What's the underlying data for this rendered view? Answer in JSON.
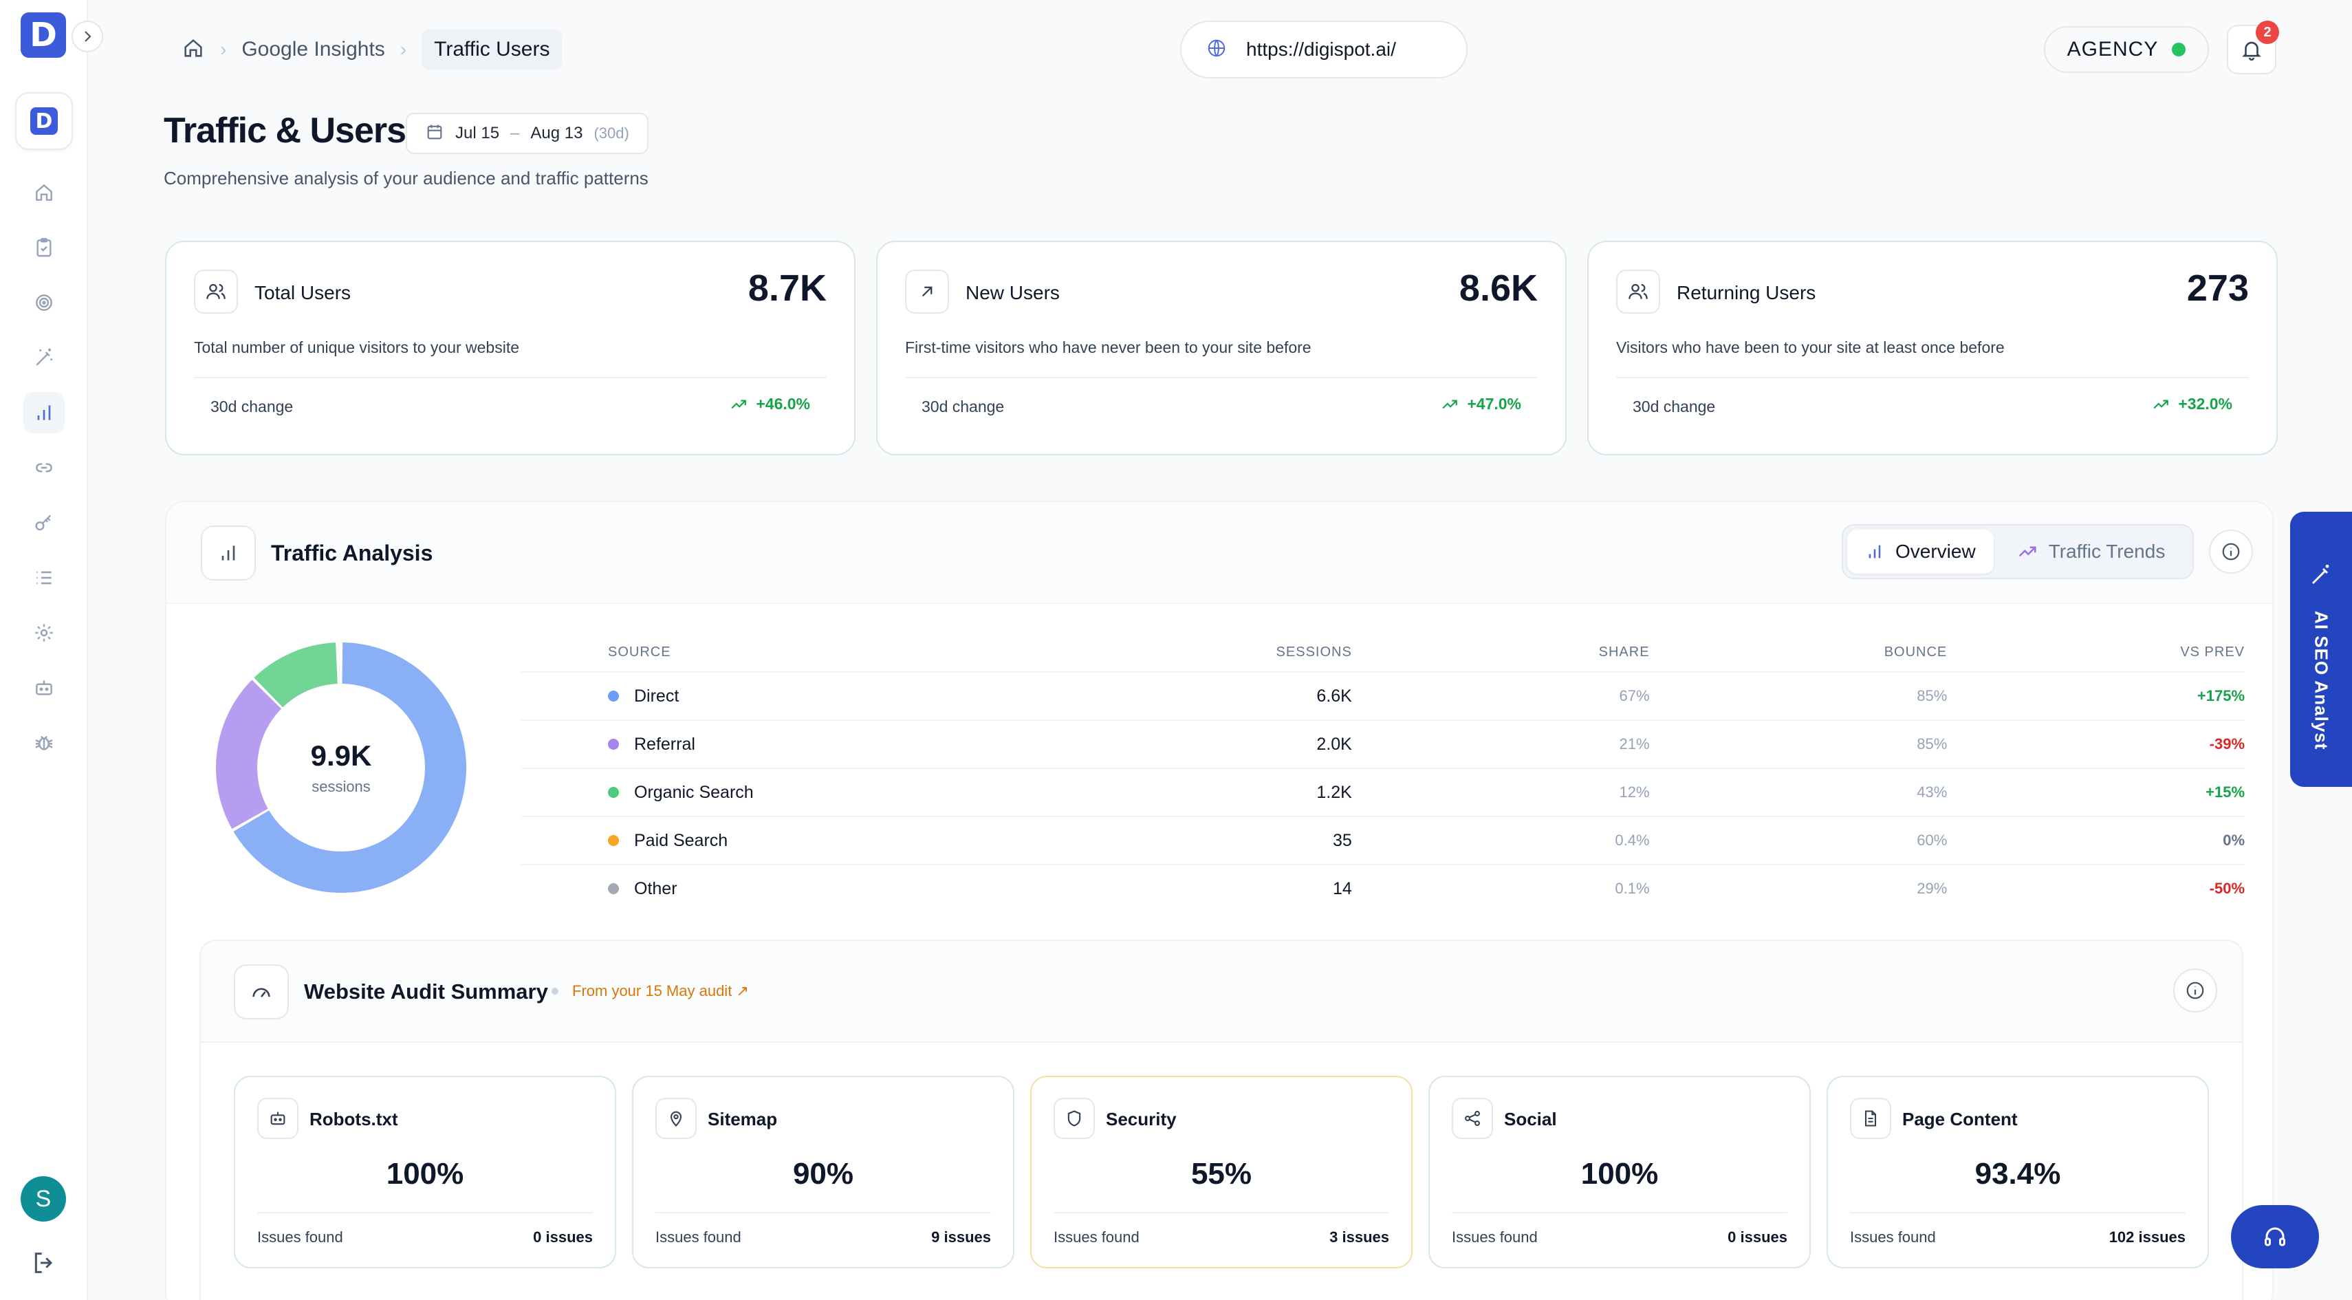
{
  "sidebar": {
    "logo_letter": "D",
    "workspace_letter": "D",
    "nav_icons": [
      "home-icon",
      "clipboard-icon",
      "target-icon",
      "magic-wand-icon",
      "bar-chart-icon",
      "link-icon",
      "key-icon",
      "list-icon",
      "gear-icon",
      "bot-icon",
      "bug-icon"
    ],
    "active_nav": "bar-chart-icon",
    "avatar_letter": "S"
  },
  "header": {
    "breadcrumbs": [
      "Google Insights",
      "Traffic Users"
    ],
    "url": "https://digispot.ai/",
    "agency_label": "AGENCY",
    "notification_count": "2"
  },
  "page": {
    "title": "Traffic & Users",
    "date_start": "Jul 15",
    "date_sep": "–",
    "date_end": "Aug 13",
    "date_days": "(30d)",
    "subtitle": "Comprehensive analysis of your audience and traffic patterns"
  },
  "stats": [
    {
      "label": "Total Users",
      "value": "8.7K",
      "desc": "Total number of unique visitors to your website",
      "change_label": "30d change",
      "change": "+46.0%"
    },
    {
      "label": "New Users",
      "value": "8.6K",
      "desc": "First-time visitors who have never been to your site before",
      "change_label": "30d change",
      "change": "+47.0%"
    },
    {
      "label": "Returning Users",
      "value": "273",
      "desc": "Visitors who have been to your site at least once before",
      "change_label": "30d change",
      "change": "+32.0%"
    }
  ],
  "traffic": {
    "title": "Traffic Analysis",
    "tab_overview": "Overview",
    "tab_trends": "Traffic Trends",
    "donut_value": "9.9K",
    "donut_label": "sessions",
    "columns": {
      "source": "SOURCE",
      "sessions": "SESSIONS",
      "share": "SHARE",
      "bounce": "BOUNCE",
      "vs": "VS PREV"
    },
    "rows": [
      {
        "source": "Direct",
        "sessions": "6.6K",
        "share": "67%",
        "bounce": "85%",
        "vs": "+175%",
        "color": "#6b9cf5",
        "share_value": 67,
        "trend": "up"
      },
      {
        "source": "Referral",
        "sessions": "2.0K",
        "share": "21%",
        "bounce": "85%",
        "vs": "-39%",
        "color": "#a585ec",
        "share_value": 21,
        "trend": "down"
      },
      {
        "source": "Organic Search",
        "sessions": "1.2K",
        "share": "12%",
        "bounce": "43%",
        "vs": "+15%",
        "color": "#4fc97a",
        "share_value": 12,
        "trend": "up"
      },
      {
        "source": "Paid Search",
        "sessions": "35",
        "share": "0.4%",
        "bounce": "60%",
        "vs": "0%",
        "color": "#f5a623",
        "share_value": 0.4,
        "trend": "flat"
      },
      {
        "source": "Other",
        "sessions": "14",
        "share": "0.1%",
        "bounce": "29%",
        "vs": "-50%",
        "color": "#a3a9b4",
        "share_value": 0.1,
        "trend": "down"
      }
    ]
  },
  "audit": {
    "title": "Website Audit Summary",
    "from": "From your 15 May audit",
    "cards": [
      {
        "label": "Robots.txt",
        "pct": "100%",
        "issues_label": "Issues found",
        "issues": "0 issues",
        "icon": "robot-icon",
        "warn": false
      },
      {
        "label": "Sitemap",
        "pct": "90%",
        "issues_label": "Issues found",
        "issues": "9 issues",
        "icon": "map-pin-icon",
        "warn": false
      },
      {
        "label": "Security",
        "pct": "55%",
        "issues_label": "Issues found",
        "issues": "3 issues",
        "icon": "shield-icon",
        "warn": true
      },
      {
        "label": "Social",
        "pct": "100%",
        "issues_label": "Issues found",
        "issues": "0 issues",
        "icon": "share-icon",
        "warn": false
      },
      {
        "label": "Page Content",
        "pct": "93.4%",
        "issues_label": "Issues found",
        "issues": "102 issues",
        "icon": "document-icon",
        "warn": false
      }
    ]
  },
  "floating": {
    "ai_tab_label": "AI SEO Analyst"
  },
  "colors": {
    "accent": "#2346c0",
    "positive": "#16a34a",
    "negative": "#dc2626",
    "neutral": "#64748b"
  }
}
